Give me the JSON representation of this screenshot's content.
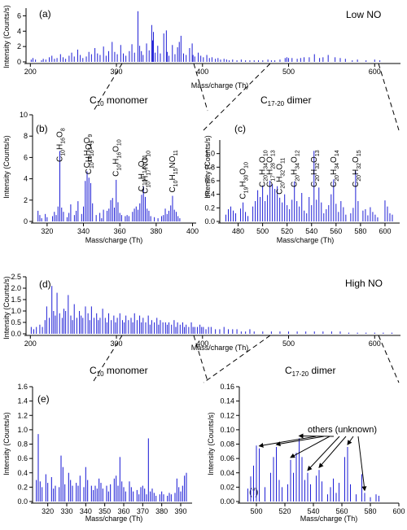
{
  "figure": {
    "colors": {
      "bar": "#1f1fd6",
      "axis": "#000000",
      "zoom_line": "#000000"
    }
  },
  "chart_data": [
    {
      "id": "a",
      "type": "bar",
      "panel_label": "(a)",
      "title": "",
      "note": "Low NO",
      "xlabel": "Mass/charge (Th)",
      "ylabel": "Intensity (Counts/s)",
      "xlim": [
        195,
        630
      ],
      "ylim": [
        0,
        7
      ],
      "xticks": [
        200,
        300,
        400,
        500,
        600
      ],
      "yticks": [
        0,
        2,
        4,
        6
      ],
      "x": [
        201,
        203,
        206,
        213,
        215,
        218,
        222,
        225,
        228,
        231,
        235,
        238,
        241,
        245,
        248,
        251,
        255,
        258,
        261,
        265,
        268,
        271,
        275,
        278,
        281,
        285,
        288,
        291,
        295,
        298,
        301,
        305,
        308,
        311,
        315,
        318,
        321,
        325,
        327,
        329,
        331,
        335,
        338,
        341,
        342,
        343,
        345,
        348,
        351,
        355,
        358,
        359,
        361,
        365,
        368,
        371,
        373,
        375,
        378,
        381,
        385,
        388,
        389,
        391,
        395,
        398,
        401,
        405,
        408,
        411,
        415,
        418,
        421,
        425,
        428,
        431,
        435,
        440,
        445,
        450,
        455,
        460,
        465,
        470,
        476,
        480,
        484,
        490,
        496,
        498,
        500,
        504,
        510,
        514,
        518,
        524,
        530,
        536,
        540,
        546,
        554,
        560,
        566,
        574,
        580,
        590,
        600,
        606
      ],
      "values": [
        0.3,
        0.5,
        0.3,
        0.2,
        0.4,
        0.3,
        0.6,
        0.8,
        0.4,
        0.5,
        1.0,
        0.6,
        0.4,
        0.8,
        1.2,
        0.7,
        1.6,
        0.9,
        0.5,
        0.7,
        1.3,
        1.0,
        1.8,
        1.1,
        0.9,
        2.0,
        0.8,
        1.4,
        2.6,
        1.3,
        1.0,
        2.2,
        1.1,
        0.8,
        1.4,
        2.3,
        1.2,
        6.6,
        2.1,
        1.4,
        0.9,
        2.4,
        1.5,
        4.8,
        2.8,
        3.9,
        1.2,
        2.1,
        1.1,
        3.7,
        4.1,
        1.3,
        0.8,
        2.2,
        1.0,
        1.9,
        2.6,
        3.4,
        1.1,
        0.9,
        1.8,
        2.4,
        0.9,
        0.7,
        1.2,
        0.8,
        0.6,
        0.9,
        0.5,
        0.6,
        0.4,
        0.5,
        0.3,
        0.4,
        0.3,
        0.2,
        0.3,
        0.2,
        0.3,
        0.2,
        0.2,
        0.2,
        0.2,
        0.2,
        0.3,
        0.2,
        0.2,
        0.3,
        0.5,
        0.6,
        0.5,
        0.5,
        0.4,
        0.5,
        0.6,
        0.6,
        1.0,
        0.5,
        0.6,
        0.9,
        0.6,
        0.5,
        0.4,
        0.2,
        0.3,
        0.2,
        0.3,
        0.2
      ]
    },
    {
      "id": "b",
      "type": "bar",
      "panel_label": "(b)",
      "title": "C10 monomer",
      "xlabel": "Mass/charge (Th)",
      "ylabel": "Intensity (Counts/s)",
      "xlim": [
        312,
        402
      ],
      "ylim": [
        0,
        10
      ],
      "xticks": [
        320,
        340,
        360,
        380,
        400
      ],
      "yticks": [
        0,
        2,
        4,
        6,
        8,
        10
      ],
      "x": [
        315,
        316,
        317,
        319,
        320,
        323,
        324,
        325,
        326,
        327,
        328,
        329,
        331,
        332,
        333,
        335,
        336,
        337,
        339,
        340,
        341,
        342,
        343,
        344,
        345,
        347,
        349,
        350,
        351,
        353,
        354,
        355,
        356,
        357,
        358,
        359,
        360,
        361,
        363,
        364,
        365,
        367,
        368,
        369,
        370,
        371,
        372,
        373,
        374,
        375,
        376,
        377,
        379,
        381,
        383,
        384,
        385,
        386,
        387,
        388,
        389,
        390,
        391,
        392,
        393
      ],
      "values": [
        1.0,
        0.6,
        0.3,
        0.7,
        0.4,
        0.5,
        0.9,
        0.6,
        1.4,
        6.6,
        1.3,
        0.9,
        0.4,
        0.8,
        1.6,
        0.6,
        1.0,
        1.9,
        0.7,
        1.4,
        3.8,
        4.7,
        4.1,
        3.6,
        1.7,
        0.6,
        0.8,
        0.3,
        1.1,
        1.0,
        1.2,
        2.0,
        2.2,
        1.3,
        3.9,
        1.8,
        0.8,
        0.6,
        0.5,
        0.6,
        0.5,
        0.9,
        1.2,
        1.4,
        1.1,
        1.7,
        2.5,
        3.3,
        2.3,
        1.2,
        1.0,
        0.5,
        0.4,
        0.3,
        0.5,
        0.6,
        1.2,
        0.7,
        1.0,
        1.5,
        2.4,
        1.1,
        0.9,
        0.5,
        0.3
      ],
      "annotations": [
        {
          "text": "C10H16O8",
          "x": 327
        },
        {
          "text": "C10H14O9",
          "x": 342
        },
        {
          "text": "C10H16O9",
          "x": 343
        },
        {
          "text": "C10H16O10",
          "x": 358
        },
        {
          "text": "C10H14O11",
          "x": 372
        },
        {
          "text": "C10H17NO10",
          "x": 374
        },
        {
          "text": "C10H15NO11",
          "x": 389
        }
      ]
    },
    {
      "id": "c",
      "type": "bar",
      "panel_label": "(c)",
      "title": "C17-20 dimer",
      "xlabel": "Mass/charge (Th)",
      "ylabel": "Intensity (Counts/s)",
      "xlim": [
        465,
        612
      ],
      "ylim": [
        0,
        1.2
      ],
      "xticks": [
        480,
        500,
        520,
        540,
        560,
        580,
        600
      ],
      "yticks": [
        0.0,
        0.2,
        0.4,
        0.6,
        0.8,
        1.0
      ],
      "x": [
        470,
        472,
        474,
        476,
        478,
        482,
        484,
        486,
        488,
        492,
        494,
        496,
        498,
        500,
        502,
        504,
        506,
        508,
        510,
        512,
        514,
        516,
        518,
        520,
        522,
        524,
        526,
        528,
        530,
        532,
        534,
        536,
        538,
        540,
        542,
        544,
        546,
        548,
        550,
        552,
        554,
        556,
        558,
        560,
        562,
        564,
        566,
        568,
        572,
        574,
        576,
        578,
        582,
        584,
        586,
        588,
        590,
        592,
        594,
        600,
        602,
        604,
        606
      ],
      "values": [
        0.1,
        0.18,
        0.22,
        0.16,
        0.12,
        0.19,
        0.28,
        0.14,
        0.08,
        0.22,
        0.3,
        0.46,
        0.36,
        0.53,
        0.3,
        0.39,
        0.6,
        0.55,
        0.48,
        0.52,
        0.35,
        0.28,
        0.4,
        0.24,
        0.18,
        0.32,
        0.59,
        0.3,
        0.22,
        0.42,
        0.16,
        0.12,
        0.36,
        0.24,
        1.04,
        0.32,
        0.5,
        0.28,
        0.12,
        0.18,
        0.24,
        0.4,
        0.62,
        0.26,
        0.14,
        0.3,
        0.21,
        0.1,
        0.12,
        0.2,
        0.74,
        0.3,
        0.16,
        0.18,
        0.09,
        0.21,
        0.14,
        0.1,
        0.06,
        0.31,
        0.22,
        0.12,
        0.1
      ],
      "annotations": [
        {
          "text": "C19H30O10",
          "x": 484
        },
        {
          "text": "C20H34O10",
          "x": 500
        },
        {
          "text": "C17H28O13",
          "x": 506
        },
        {
          "text": "C20H32O11",
          "x": 514
        },
        {
          "text": "C20H34O12",
          "x": 526
        },
        {
          "text": "C20H32O13",
          "x": 542
        },
        {
          "text": "C20H34O14",
          "x": 558
        },
        {
          "text": "C20H32O15",
          "x": 576
        }
      ]
    },
    {
      "id": "d",
      "type": "bar",
      "panel_label": "(d)",
      "title": "",
      "note": "High NO",
      "xlabel": "Mass/charge (Th)",
      "ylabel": "Intensity (Counts/s)",
      "xlim": [
        195,
        630
      ],
      "ylim": [
        0,
        2.5
      ],
      "xticks": [
        200,
        300,
        400,
        500,
        600
      ],
      "yticks": [
        0.0,
        0.5,
        1.0,
        1.5,
        2.0,
        2.5
      ],
      "x": [
        201,
        204,
        207,
        211,
        214,
        217,
        219,
        222,
        225,
        227,
        229,
        231,
        234,
        237,
        239,
        241,
        244,
        247,
        249,
        251,
        254,
        257,
        259,
        261,
        264,
        267,
        269,
        271,
        274,
        277,
        279,
        281,
        284,
        287,
        289,
        291,
        294,
        297,
        299,
        301,
        304,
        307,
        309,
        311,
        314,
        317,
        319,
        321,
        324,
        327,
        329,
        331,
        334,
        337,
        339,
        341,
        344,
        347,
        349,
        351,
        354,
        357,
        359,
        361,
        364,
        367,
        369,
        371,
        374,
        377,
        379,
        381,
        384,
        387,
        389,
        391,
        394,
        397,
        399,
        401,
        404,
        407,
        410,
        415,
        420,
        425,
        430,
        435,
        440,
        445,
        450,
        455,
        460,
        470,
        480,
        490,
        500,
        510,
        520,
        530,
        540,
        550,
        560,
        570,
        580,
        590,
        600,
        610,
        620
      ],
      "values": [
        0.3,
        0.2,
        0.3,
        0.4,
        0.3,
        0.6,
        1.2,
        0.7,
        2.1,
        1.0,
        0.8,
        1.8,
        0.9,
        0.7,
        1.1,
        1.0,
        1.7,
        0.8,
        0.6,
        1.3,
        0.7,
        1.0,
        0.8,
        0.7,
        1.2,
        0.9,
        0.6,
        1.2,
        0.7,
        0.9,
        0.6,
        0.7,
        1.1,
        0.7,
        0.5,
        0.9,
        0.6,
        0.8,
        0.5,
        0.7,
        0.9,
        0.6,
        0.5,
        0.8,
        0.6,
        0.7,
        0.5,
        0.9,
        0.6,
        0.8,
        0.5,
        0.7,
        0.5,
        0.8,
        0.4,
        0.6,
        0.5,
        0.7,
        0.4,
        0.6,
        0.5,
        0.5,
        0.4,
        0.5,
        0.4,
        0.6,
        0.3,
        0.5,
        0.4,
        0.5,
        0.3,
        0.4,
        0.3,
        0.5,
        0.3,
        0.3,
        0.3,
        0.4,
        0.3,
        0.3,
        0.2,
        0.3,
        0.3,
        0.2,
        0.2,
        0.3,
        0.2,
        0.2,
        0.2,
        0.1,
        0.1,
        0.2,
        0.1,
        0.1,
        0.1,
        0.1,
        0.1,
        0.1,
        0.1,
        0.1,
        0.1,
        0.1,
        0.1,
        0.05,
        0.05,
        0.05,
        0.05,
        0.05,
        0.05
      ]
    },
    {
      "id": "e",
      "type": "bar",
      "panel_label": "(e)",
      "title": "C10 monomer",
      "xlabel": "Mass/charge (Th)",
      "ylabel": "Intensity (Counts/s)",
      "xlim": [
        312,
        396
      ],
      "ylim": [
        0,
        1.6
      ],
      "xticks": [
        320,
        330,
        340,
        350,
        360,
        370,
        380,
        390
      ],
      "yticks": [
        0.0,
        0.2,
        0.4,
        0.6,
        0.8,
        1.0,
        1.2,
        1.4,
        1.6
      ],
      "x": [
        314,
        315,
        316,
        317,
        319,
        320,
        322,
        323,
        324,
        326,
        327,
        328,
        329,
        331,
        332,
        333,
        335,
        336,
        337,
        339,
        340,
        341,
        343,
        344,
        345,
        346,
        347,
        348,
        349,
        351,
        352,
        353,
        355,
        356,
        357,
        358,
        359,
        360,
        361,
        363,
        364,
        365,
        367,
        368,
        369,
        370,
        371,
        372,
        373,
        374,
        375,
        376,
        377,
        379,
        380,
        381,
        383,
        384,
        385,
        387,
        388,
        389,
        390,
        391,
        392,
        393
      ],
      "values": [
        0.3,
        0.94,
        0.28,
        0.2,
        0.38,
        0.26,
        0.34,
        0.18,
        0.22,
        0.2,
        0.64,
        0.48,
        0.24,
        0.4,
        0.3,
        0.22,
        0.26,
        0.22,
        0.36,
        0.2,
        0.48,
        0.3,
        0.22,
        0.16,
        0.22,
        0.18,
        0.32,
        0.26,
        0.18,
        0.22,
        0.14,
        0.24,
        0.32,
        0.36,
        0.22,
        0.62,
        0.28,
        0.2,
        0.14,
        0.28,
        0.2,
        0.14,
        0.16,
        0.1,
        0.2,
        0.22,
        0.18,
        0.1,
        0.88,
        0.14,
        0.18,
        0.12,
        0.08,
        0.1,
        0.14,
        0.1,
        0.08,
        0.12,
        0.1,
        0.12,
        0.32,
        0.2,
        0.14,
        0.22,
        0.36,
        0.4
      ]
    },
    {
      "id": "f",
      "type": "bar",
      "panel_label": "(f)",
      "title": "C17-20 dimer",
      "xlabel": "Mass/charge (Th)",
      "ylabel": "Intensity (Counts/s)",
      "xlim": [
        488,
        600
      ],
      "ylim": [
        0,
        0.16
      ],
      "xticks": [
        500,
        520,
        540,
        560,
        580,
        600
      ],
      "yticks": [
        0.0,
        0.02,
        0.04,
        0.06,
        0.08,
        0.1,
        0.12,
        0.14,
        0.16
      ],
      "x": [
        494,
        496,
        498,
        500,
        502,
        506,
        510,
        512,
        514,
        516,
        518,
        522,
        524,
        526,
        528,
        530,
        532,
        534,
        536,
        538,
        542,
        544,
        546,
        550,
        552,
        554,
        556,
        558,
        562,
        564,
        566,
        570,
        574,
        576,
        580,
        584,
        586
      ],
      "values": [
        0.018,
        0.035,
        0.05,
        0.078,
        0.074,
        0.02,
        0.04,
        0.062,
        0.076,
        0.03,
        0.02,
        0.024,
        0.058,
        0.04,
        0.068,
        0.088,
        0.062,
        0.03,
        0.04,
        0.024,
        0.036,
        0.044,
        0.028,
        0.01,
        0.02,
        0.032,
        0.012,
        0.026,
        0.062,
        0.076,
        0.024,
        0.01,
        0.038,
        0.012,
        0.006,
        0.01,
        0.008
      ],
      "annotations": [
        {
          "text": "others (unknown)"
        }
      ]
    }
  ]
}
